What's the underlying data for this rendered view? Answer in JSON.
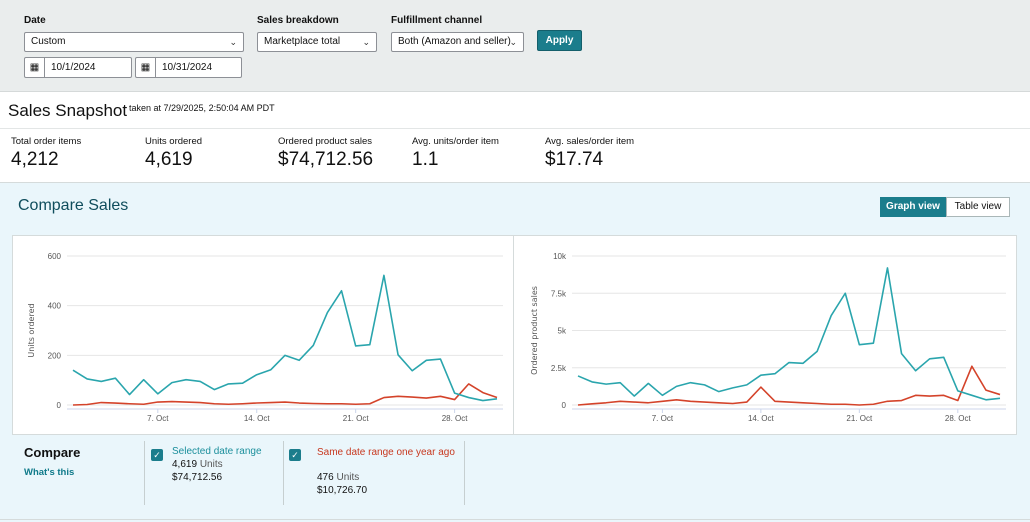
{
  "filters": {
    "date": {
      "label": "Date",
      "value": "Custom",
      "start": "10/1/2024",
      "end": "10/31/2024"
    },
    "sales_breakdown": {
      "label": "Sales breakdown",
      "value": "Marketplace total"
    },
    "fulfillment": {
      "label": "Fulfillment channel",
      "value": "Both (Amazon and seller)"
    },
    "apply_label": "Apply"
  },
  "snapshot": {
    "title": "Sales Snapshot",
    "taken": "taken at 7/29/2025, 2:50:04 AM PDT",
    "metrics": [
      {
        "label": "Total order items",
        "value": "4,212"
      },
      {
        "label": "Units ordered",
        "value": "4,619"
      },
      {
        "label": "Ordered product sales",
        "value": "$74,712.56"
      },
      {
        "label": "Avg. units/order item",
        "value": "1.1"
      },
      {
        "label": "Avg. sales/order item",
        "value": "$17.74"
      }
    ]
  },
  "compare": {
    "title": "Compare Sales",
    "graph_view_label": "Graph view",
    "table_view_label": "Table view",
    "legend_title": "Compare",
    "whats_this": "What's this",
    "selected": {
      "title": "Selected date range",
      "units_value": "4,619",
      "units_label": "Units",
      "sales": "$74,712.56",
      "color": "#2aa5ad"
    },
    "previous": {
      "title": "Same date range one year ago",
      "units_value": "476",
      "units_label": "Units",
      "sales": "$10,726.70",
      "color": "#d4432a"
    }
  },
  "chart_data": [
    {
      "type": "line",
      "ylabel": "Units ordered",
      "ylim": [
        0,
        600
      ],
      "yticks": [
        0,
        200,
        400,
        600
      ],
      "ytick_labels": [
        "0",
        "200",
        "400",
        "600"
      ],
      "x": [
        1,
        2,
        3,
        4,
        5,
        6,
        7,
        8,
        9,
        10,
        11,
        12,
        13,
        14,
        15,
        16,
        17,
        18,
        19,
        20,
        21,
        22,
        23,
        24,
        25,
        26,
        27,
        28,
        29,
        30,
        31
      ],
      "xticks": [
        7,
        14,
        21,
        28
      ],
      "xtick_labels": [
        "7. Oct",
        "14. Oct",
        "21. Oct",
        "28. Oct"
      ],
      "series": [
        {
          "name": "Selected date range",
          "color": "#2aa5ad",
          "values": [
            140,
            105,
            95,
            108,
            42,
            102,
            45,
            90,
            102,
            95,
            62,
            85,
            88,
            122,
            142,
            200,
            180,
            240,
            372,
            460,
            238,
            243,
            522,
            202,
            138,
            180,
            185,
            48,
            30,
            18,
            25
          ]
        },
        {
          "name": "Same date range one year ago",
          "color": "#d4432a",
          "values": [
            0,
            2,
            10,
            8,
            5,
            3,
            12,
            14,
            12,
            10,
            5,
            3,
            5,
            8,
            10,
            12,
            8,
            6,
            5,
            5,
            3,
            5,
            30,
            35,
            32,
            28,
            35,
            22,
            85,
            50,
            30
          ]
        }
      ]
    },
    {
      "type": "line",
      "ylabel": "Ordered product sales",
      "ylim": [
        0,
        10000
      ],
      "yticks": [
        0,
        2500,
        5000,
        7500,
        10000
      ],
      "ytick_labels": [
        "0",
        "2.5k",
        "5k",
        "7.5k",
        "10k"
      ],
      "x": [
        1,
        2,
        3,
        4,
        5,
        6,
        7,
        8,
        9,
        10,
        11,
        12,
        13,
        14,
        15,
        16,
        17,
        18,
        19,
        20,
        21,
        22,
        23,
        24,
        25,
        26,
        27,
        28,
        29,
        30,
        31
      ],
      "xticks": [
        7,
        14,
        21,
        28
      ],
      "xtick_labels": [
        "7. Oct",
        "14. Oct",
        "21. Oct",
        "28. Oct"
      ],
      "series": [
        {
          "name": "Selected date range",
          "color": "#2aa5ad",
          "values": [
            1950,
            1550,
            1400,
            1500,
            600,
            1450,
            650,
            1250,
            1500,
            1350,
            900,
            1150,
            1350,
            2000,
            2100,
            2850,
            2800,
            3600,
            6000,
            7500,
            4050,
            4150,
            9200,
            3450,
            2300,
            3100,
            3200,
            950,
            650,
            350,
            450
          ]
        },
        {
          "name": "Same date range one year ago",
          "color": "#d4432a",
          "values": [
            0,
            80,
            150,
            250,
            200,
            150,
            250,
            350,
            250,
            200,
            150,
            100,
            200,
            1200,
            250,
            200,
            150,
            100,
            50,
            50,
            0,
            50,
            250,
            300,
            650,
            600,
            650,
            300,
            2600,
            1000,
            700
          ]
        }
      ]
    }
  ]
}
